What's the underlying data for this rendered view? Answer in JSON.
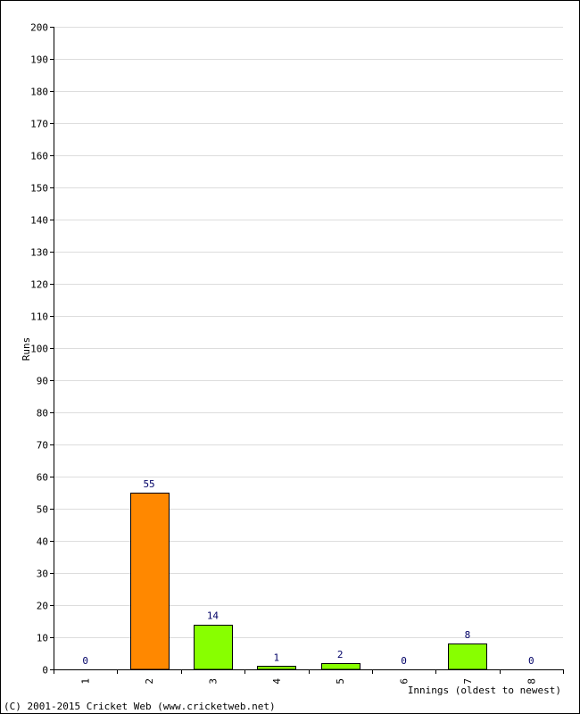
{
  "chart_data": {
    "type": "bar",
    "categories": [
      "1",
      "2",
      "3",
      "4",
      "5",
      "6",
      "7",
      "8"
    ],
    "values": [
      0,
      55,
      14,
      1,
      2,
      0,
      8,
      0
    ],
    "bar_colors": [
      "#88ff00",
      "#ff8800",
      "#88ff00",
      "#88ff00",
      "#88ff00",
      "#88ff00",
      "#88ff00",
      "#88ff00"
    ],
    "data_labels": [
      "0",
      "55",
      "14",
      "1",
      "2",
      "0",
      "8",
      "0"
    ],
    "xlabel": "Innings (oldest to newest)",
    "ylabel": "Runs",
    "ylim": [
      0,
      200
    ],
    "ytick_step": 10,
    "grid": true,
    "label_color": "#000066",
    "grid_color": "#dddddd"
  },
  "footer": {
    "copyright": "(C) 2001-2015 Cricket Web (www.cricketweb.net)"
  }
}
